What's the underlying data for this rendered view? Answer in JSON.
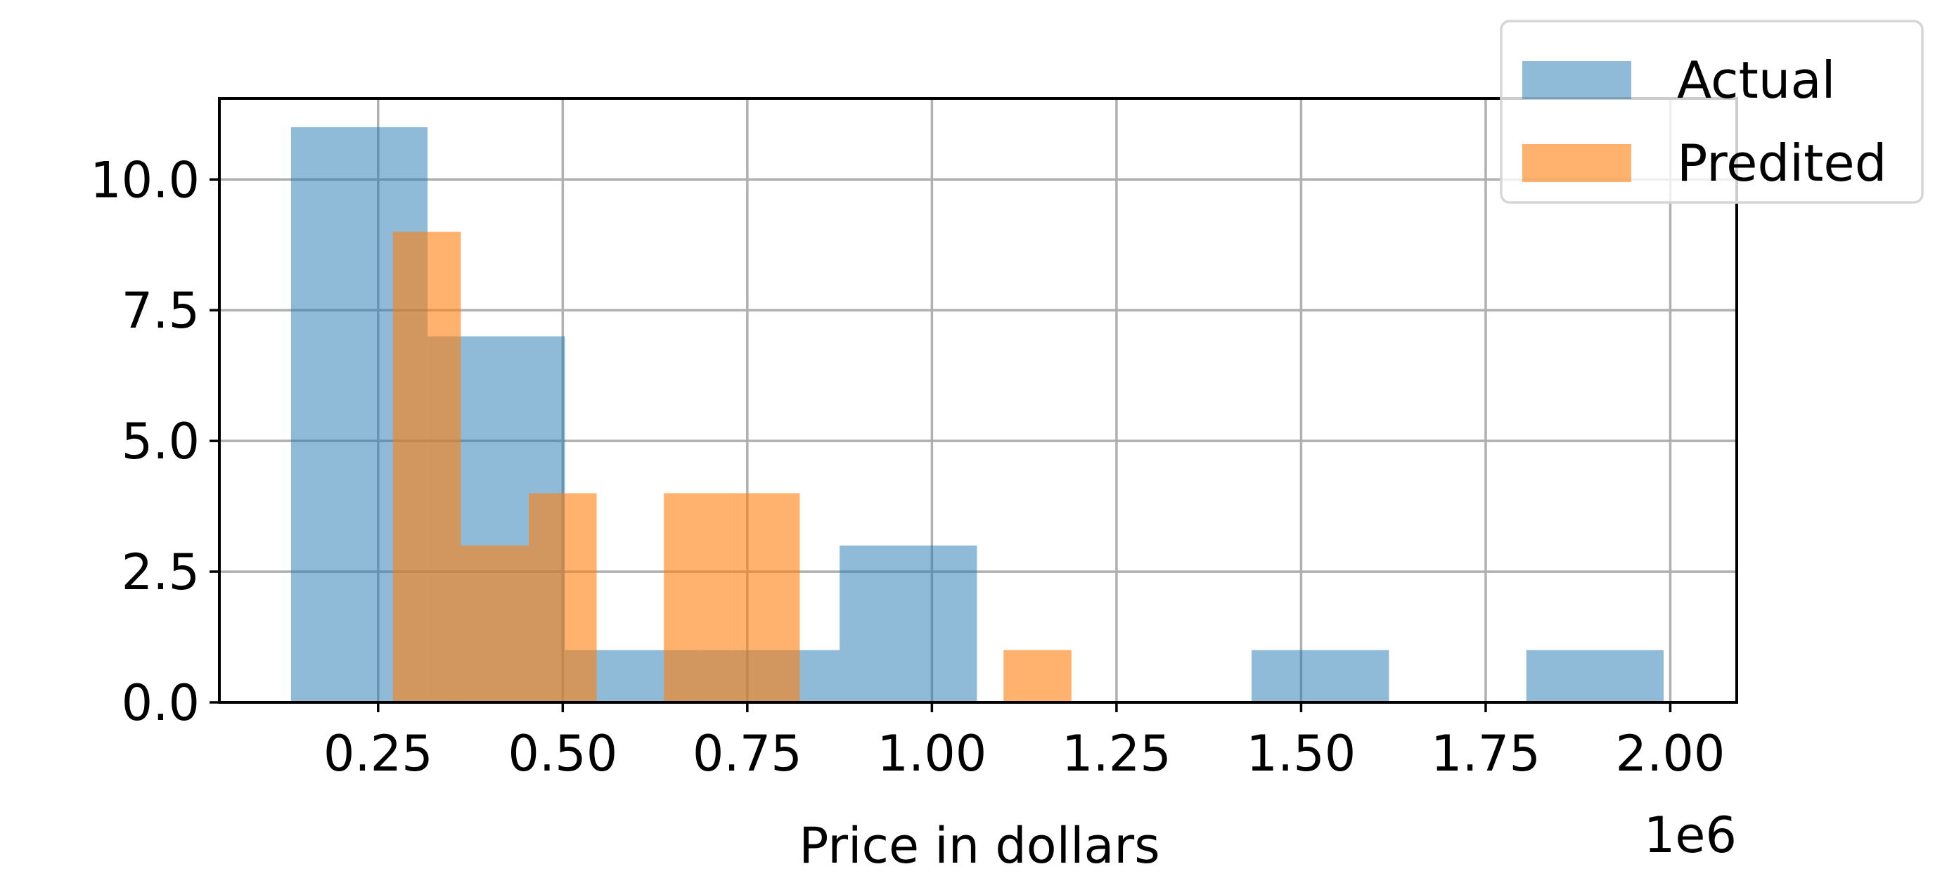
{
  "chart_data": {
    "type": "bar",
    "title": "",
    "xlabel": "Price in dollars",
    "ylabel": "",
    "x_offset_label": "1e6",
    "x_unit_scale": 1000000,
    "xlim": [
      0.035,
      2.09
    ],
    "ylim": [
      0,
      11.55
    ],
    "grid": true,
    "legend_position": "top-right",
    "x_ticks": [
      {
        "value": 0.25,
        "label": "0.25"
      },
      {
        "value": 0.5,
        "label": "0.50"
      },
      {
        "value": 0.75,
        "label": "0.75"
      },
      {
        "value": 1.0,
        "label": "1.00"
      },
      {
        "value": 1.25,
        "label": "1.25"
      },
      {
        "value": 1.5,
        "label": "1.50"
      },
      {
        "value": 1.75,
        "label": "1.75"
      },
      {
        "value": 2.0,
        "label": "2.00"
      }
    ],
    "y_ticks": [
      {
        "value": 0.0,
        "label": "0.0"
      },
      {
        "value": 2.5,
        "label": "2.5"
      },
      {
        "value": 5.0,
        "label": "5.0"
      },
      {
        "value": 7.5,
        "label": "7.5"
      },
      {
        "value": 10.0,
        "label": "10.0"
      }
    ],
    "series": [
      {
        "name": "Actual",
        "color": "#1f77b4",
        "opacity": 0.5,
        "bins": [
          {
            "x0": 0.132,
            "x1": 0.317,
            "count": 11
          },
          {
            "x0": 0.317,
            "x1": 0.503,
            "count": 7
          },
          {
            "x0": 0.503,
            "x1": 0.689,
            "count": 1
          },
          {
            "x0": 0.689,
            "x1": 0.875,
            "count": 1
          },
          {
            "x0": 0.875,
            "x1": 1.061,
            "count": 3
          },
          {
            "x0": 1.061,
            "x1": 1.247,
            "count": 0
          },
          {
            "x0": 1.247,
            "x1": 1.433,
            "count": 0
          },
          {
            "x0": 1.433,
            "x1": 1.619,
            "count": 1
          },
          {
            "x0": 1.619,
            "x1": 1.805,
            "count": 0
          },
          {
            "x0": 1.805,
            "x1": 1.991,
            "count": 1
          }
        ]
      },
      {
        "name": "Predited",
        "color": "#ff7f0e",
        "opacity": 0.6,
        "bins": [
          {
            "x0": 0.27,
            "x1": 0.362,
            "count": 9
          },
          {
            "x0": 0.362,
            "x1": 0.454,
            "count": 3
          },
          {
            "x0": 0.454,
            "x1": 0.546,
            "count": 4
          },
          {
            "x0": 0.546,
            "x1": 0.637,
            "count": 0
          },
          {
            "x0": 0.637,
            "x1": 0.729,
            "count": 4
          },
          {
            "x0": 0.729,
            "x1": 0.821,
            "count": 4
          },
          {
            "x0": 0.821,
            "x1": 0.913,
            "count": 0
          },
          {
            "x0": 0.913,
            "x1": 1.005,
            "count": 0
          },
          {
            "x0": 1.005,
            "x1": 1.097,
            "count": 0
          },
          {
            "x0": 1.097,
            "x1": 1.189,
            "count": 1
          }
        ]
      }
    ]
  }
}
